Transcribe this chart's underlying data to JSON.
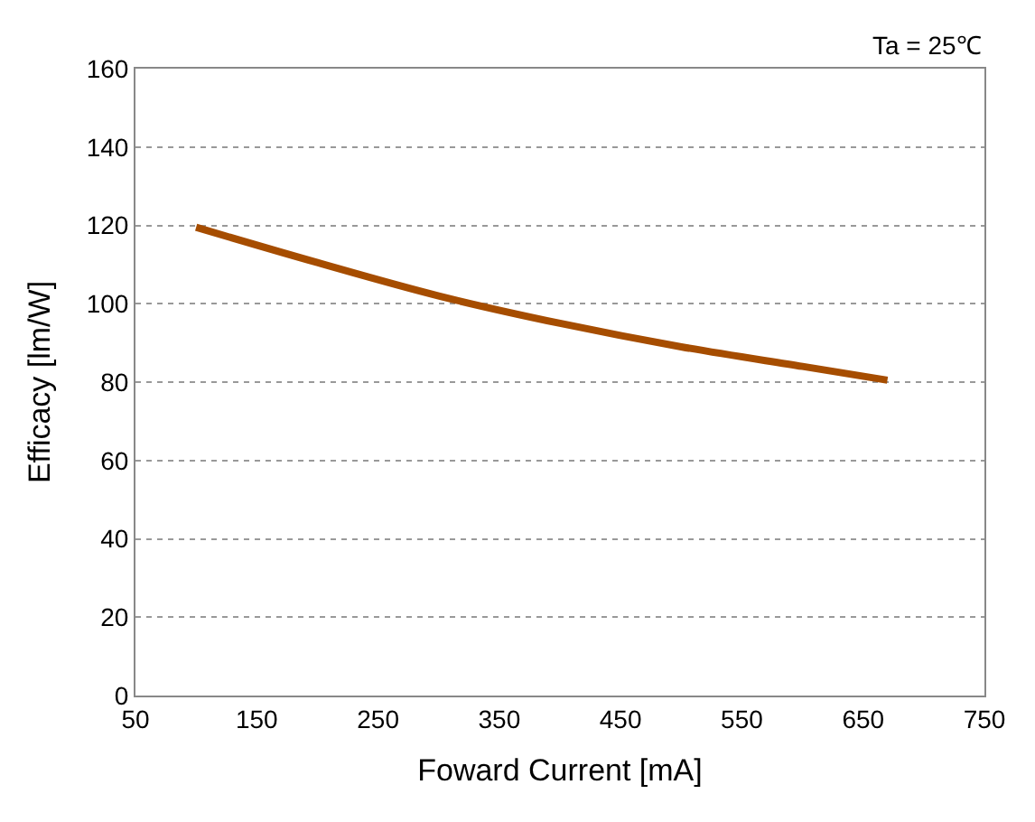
{
  "chart_data": {
    "type": "line",
    "xlabel": "Foward Current [mA]",
    "ylabel": "Efficacy [lm/W]",
    "annotations": [
      "Ta = 25℃"
    ],
    "x": [
      100,
      200,
      300,
      400,
      500,
      600,
      670
    ],
    "series": [
      {
        "color": "#a64d00",
        "values": [
          119.5,
          110.5,
          102,
          95,
          89,
          84,
          80.5
        ]
      }
    ],
    "xlim": [
      50,
      750
    ],
    "xticks": [
      50,
      150,
      250,
      350,
      450,
      550,
      650,
      750
    ],
    "ylim": [
      0,
      160
    ],
    "yticks": [
      0,
      20,
      40,
      60,
      80,
      100,
      120,
      140,
      160
    ],
    "grid": "y",
    "marker": "none",
    "line_style": "solid"
  }
}
